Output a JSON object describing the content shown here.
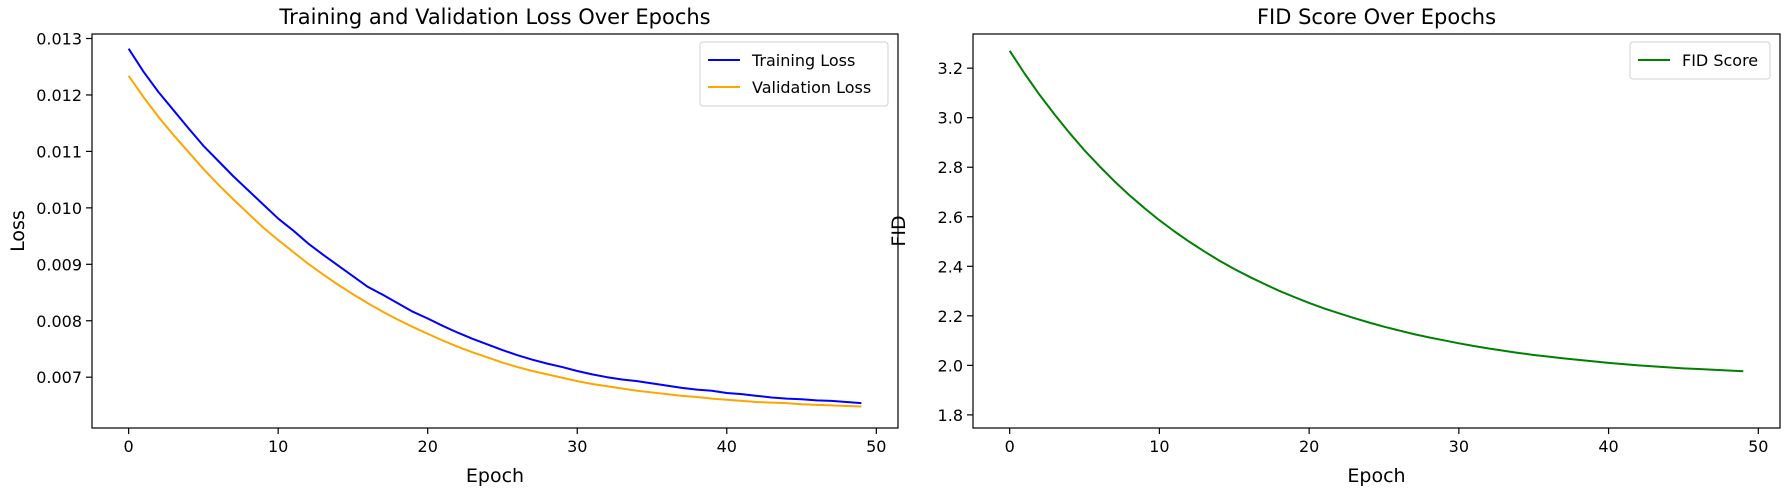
{
  "chart_data": [
    {
      "type": "line",
      "title": "Training and Validation Loss Over Epochs",
      "xlabel": "Epoch",
      "ylabel": "Loss",
      "xlim": [
        -2.45,
        51.45
      ],
      "ylim": [
        0.0061,
        0.01308
      ],
      "xticks": [
        0,
        10,
        20,
        30,
        40,
        50
      ],
      "yticks": [
        0.007,
        0.008,
        0.009,
        0.01,
        0.011,
        0.012,
        0.013
      ],
      "ytick_labels": [
        "0.007",
        "0.008",
        "0.009",
        "0.010",
        "0.011",
        "0.012",
        "0.013"
      ],
      "legend_position": "top-right",
      "series": [
        {
          "name": "Training Loss",
          "color": "#0000ff",
          "x": [
            0,
            1,
            2,
            3,
            4,
            5,
            6,
            7,
            8,
            9,
            10,
            11,
            12,
            13,
            14,
            15,
            16,
            17,
            18,
            19,
            20,
            21,
            22,
            23,
            24,
            25,
            26,
            27,
            28,
            29,
            30,
            31,
            32,
            33,
            34,
            35,
            36,
            37,
            38,
            39,
            40,
            41,
            42,
            43,
            44,
            45,
            46,
            47,
            48,
            49
          ],
          "values": [
            0.01282,
            0.01241,
            0.01205,
            0.01173,
            0.01141,
            0.0111,
            0.01083,
            0.01056,
            0.01031,
            0.01006,
            0.00981,
            0.0096,
            0.00937,
            0.00917,
            0.00898,
            0.00879,
            0.0086,
            0.00846,
            0.00831,
            0.00816,
            0.00804,
            0.00791,
            0.00779,
            0.00768,
            0.00758,
            0.00748,
            0.00739,
            0.00731,
            0.00724,
            0.00718,
            0.00711,
            0.00705,
            0.007,
            0.00696,
            0.00693,
            0.00689,
            0.00685,
            0.00681,
            0.00678,
            0.00676,
            0.00672,
            0.0067,
            0.00667,
            0.00664,
            0.00662,
            0.00661,
            0.00659,
            0.00658,
            0.00656,
            0.00654
          ]
        },
        {
          "name": "Validation Loss",
          "color": "#ffa500",
          "x": [
            0,
            1,
            2,
            3,
            4,
            5,
            6,
            7,
            8,
            9,
            10,
            11,
            12,
            13,
            14,
            15,
            16,
            17,
            18,
            19,
            20,
            21,
            22,
            23,
            24,
            25,
            26,
            27,
            28,
            29,
            30,
            31,
            32,
            33,
            34,
            35,
            36,
            37,
            38,
            39,
            40,
            41,
            42,
            43,
            44,
            45,
            46,
            47,
            48,
            49
          ],
          "values": [
            0.01234,
            0.01196,
            0.01161,
            0.01129,
            0.01099,
            0.01069,
            0.01041,
            0.01015,
            0.0099,
            0.00965,
            0.00943,
            0.00922,
            0.00901,
            0.00882,
            0.00864,
            0.00847,
            0.00831,
            0.00816,
            0.00802,
            0.00789,
            0.00777,
            0.00765,
            0.00754,
            0.00744,
            0.00735,
            0.00726,
            0.00718,
            0.00711,
            0.00705,
            0.00699,
            0.00693,
            0.00688,
            0.00684,
            0.0068,
            0.00676,
            0.00673,
            0.0067,
            0.00667,
            0.00665,
            0.00662,
            0.0066,
            0.00658,
            0.00656,
            0.00655,
            0.00654,
            0.00652,
            0.00651,
            0.0065,
            0.00649,
            0.00648
          ]
        }
      ]
    },
    {
      "type": "line",
      "title": "FID Score Over Epochs",
      "xlabel": "Epoch",
      "ylabel": "FID",
      "xlim": [
        -2.45,
        51.45
      ],
      "ylim": [
        1.747,
        3.338
      ],
      "xticks": [
        0,
        10,
        20,
        30,
        40,
        50
      ],
      "yticks": [
        1.8,
        2.0,
        2.2,
        2.4,
        2.6,
        2.8,
        3.0,
        3.2
      ],
      "ytick_labels": [
        "1.8",
        "2.0",
        "2.2",
        "2.4",
        "2.6",
        "2.8",
        "3.0",
        "3.2"
      ],
      "legend_position": "top-right",
      "series": [
        {
          "name": "FID Score",
          "color": "#008000",
          "x": [
            0,
            1,
            2,
            3,
            4,
            5,
            6,
            7,
            8,
            9,
            10,
            11,
            12,
            13,
            14,
            15,
            16,
            17,
            18,
            19,
            20,
            21,
            22,
            23,
            24,
            25,
            26,
            27,
            28,
            29,
            30,
            31,
            32,
            33,
            34,
            35,
            36,
            37,
            38,
            39,
            40,
            41,
            42,
            43,
            44,
            45,
            46,
            47,
            48,
            49
          ],
          "values": [
            3.27,
            3.178,
            3.092,
            3.013,
            2.938,
            2.868,
            2.804,
            2.743,
            2.687,
            2.635,
            2.586,
            2.541,
            2.499,
            2.46,
            2.423,
            2.389,
            2.358,
            2.329,
            2.301,
            2.276,
            2.252,
            2.23,
            2.21,
            2.191,
            2.173,
            2.156,
            2.141,
            2.126,
            2.113,
            2.101,
            2.089,
            2.078,
            2.068,
            2.059,
            2.05,
            2.042,
            2.035,
            2.028,
            2.022,
            2.016,
            2.01,
            2.005,
            2.0,
            1.996,
            1.992,
            1.988,
            1.985,
            1.982,
            1.979,
            1.976
          ]
        }
      ]
    }
  ]
}
